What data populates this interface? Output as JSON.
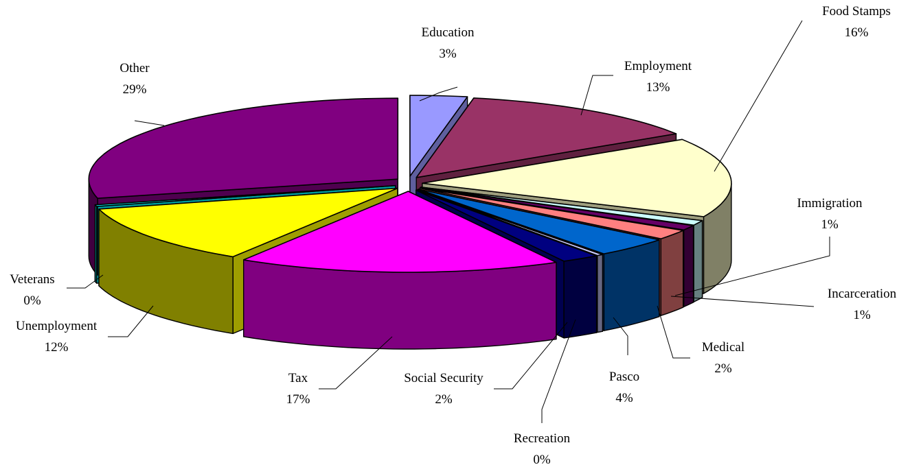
{
  "chart_data": {
    "type": "pie",
    "style": "3d-exploded",
    "title": "",
    "slices": [
      {
        "label": "Education",
        "value": 3,
        "value_label": "3%",
        "color": "#9999ff"
      },
      {
        "label": "Employment",
        "value": 13,
        "value_label": "13%",
        "color": "#993366"
      },
      {
        "label": "Food Stamps",
        "value": 16,
        "value_label": "16%",
        "color": "#ffffcc"
      },
      {
        "label": "Immigration",
        "value": 1,
        "value_label": "1%",
        "color": "#ccffff"
      },
      {
        "label": "Incarceration",
        "value": 1,
        "value_label": "1%",
        "color": "#660066"
      },
      {
        "label": "Medical",
        "value": 2,
        "value_label": "2%",
        "color": "#ff8080"
      },
      {
        "label": "Pasco",
        "value": 4,
        "value_label": "4%",
        "color": "#0066cc"
      },
      {
        "label": "Recreation",
        "value": 0,
        "value_label": "0%",
        "color": "#ccccff"
      },
      {
        "label": "Social Security",
        "value": 2,
        "value_label": "2%",
        "color": "#000080"
      },
      {
        "label": "Tax",
        "value": 17,
        "value_label": "17%",
        "color": "#ff00ff"
      },
      {
        "label": "Unemployment",
        "value": 12,
        "value_label": "12%",
        "color": "#ffff00"
      },
      {
        "label": "Veterans",
        "value": 0,
        "value_label": "0%",
        "color": "#00ffff"
      },
      {
        "label": "Other",
        "value": 29,
        "value_label": "29%",
        "color": "#800080"
      }
    ],
    "legend": "none",
    "labels": "outside-with-leader-lines"
  }
}
